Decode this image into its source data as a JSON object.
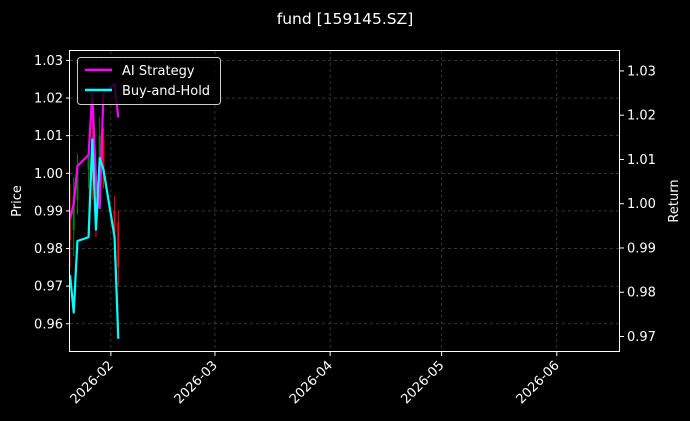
{
  "chart_data": {
    "type": "line",
    "title": "fund [159145.SZ]",
    "left_ylabel": "Price",
    "right_ylabel": "Return",
    "xlim": [
      "2026-01-21",
      "2026-06-18"
    ],
    "xticks": [
      "2026-02",
      "2026-03",
      "2026-04",
      "2026-05",
      "2026-06"
    ],
    "left_ylim": [
      0.9525,
      1.0325
    ],
    "left_yticks": [
      "0.96",
      "0.97",
      "0.98",
      "0.99",
      "1.00",
      "1.01",
      "1.02",
      "1.03"
    ],
    "right_ylim": [
      0.9665,
      1.0345
    ],
    "right_yticks": [
      "0.97",
      "0.98",
      "0.99",
      "1.00",
      "1.01",
      "1.02",
      "1.03"
    ],
    "grid": true,
    "legend_position": "top-left",
    "candlesticks": [
      {
        "date": "2026-01-21",
        "open": 0.99,
        "close": 0.982,
        "high": 0.997,
        "low": 0.975
      },
      {
        "date": "2026-01-22",
        "open": 0.985,
        "close": 0.994,
        "high": 0.999,
        "low": 0.978
      },
      {
        "date": "2026-01-23",
        "open": 0.993,
        "close": 1.001,
        "high": 1.005,
        "low": 0.989
      },
      {
        "date": "2026-01-26",
        "open": 1.001,
        "close": 1.005,
        "high": 1.008,
        "low": 0.996
      },
      {
        "date": "2026-01-27",
        "open": 1.01,
        "close": 0.998,
        "high": 1.015,
        "low": 0.993
      },
      {
        "date": "2026-01-28",
        "open": 0.993,
        "close": 0.988,
        "high": 0.998,
        "low": 0.983
      },
      {
        "date": "2026-01-29",
        "open": 1.001,
        "close": 1.01,
        "high": 1.015,
        "low": 0.996
      },
      {
        "date": "2026-01-30",
        "open": 1.009,
        "close": 1.0,
        "high": 1.012,
        "low": 0.996
      },
      {
        "date": "2026-02-02",
        "open": 0.99,
        "close": 0.984,
        "high": 0.994,
        "low": 0.977
      },
      {
        "date": "2026-02-03",
        "open": 0.987,
        "close": 0.975,
        "high": 0.99,
        "low": 0.97
      }
    ],
    "series": [
      {
        "name": "AI Strategy",
        "color": "#ff00ff",
        "axis": "right",
        "points": [
          [
            "2026-01-21",
            0.9965
          ],
          [
            "2026-01-22",
            1.0
          ],
          [
            "2026-01-23",
            1.0085
          ],
          [
            "2026-01-26",
            1.011
          ],
          [
            "2026-01-27",
            1.025
          ],
          [
            "2026-01-28",
            1.005
          ],
          [
            "2026-01-29",
            0.999
          ],
          [
            "2026-01-30",
            1.025
          ],
          [
            "2026-02-02",
            1.027
          ],
          [
            "2026-02-03",
            1.0195
          ]
        ]
      },
      {
        "name": "Buy-and-Hold",
        "color": "#00ffff",
        "axis": "left",
        "points": [
          [
            "2026-01-21",
            0.973
          ],
          [
            "2026-01-22",
            0.963
          ],
          [
            "2026-01-23",
            0.982
          ],
          [
            "2026-01-26",
            0.983
          ],
          [
            "2026-01-27",
            1.009
          ],
          [
            "2026-01-28",
            0.985
          ],
          [
            "2026-01-29",
            1.004
          ],
          [
            "2026-01-30",
            1.001
          ],
          [
            "2026-02-02",
            0.983
          ],
          [
            "2026-02-03",
            0.956
          ]
        ]
      }
    ],
    "colors": {
      "up": "#008000",
      "down": "#ff0000",
      "background": "#000000",
      "grid": "#555555"
    }
  }
}
